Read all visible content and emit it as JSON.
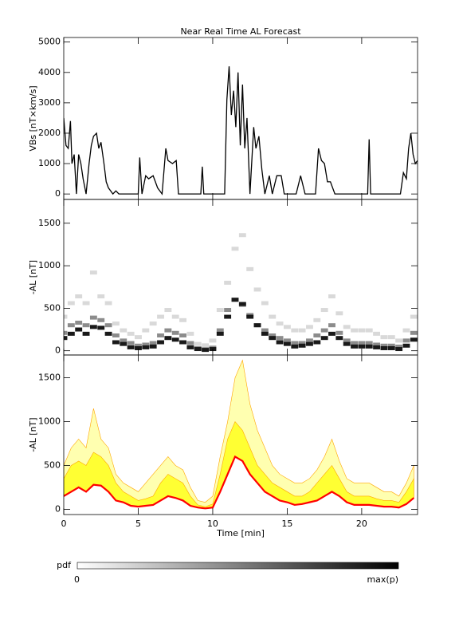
{
  "chart_data": [
    {
      "type": "line",
      "title": "Near Real Time AL Forecast",
      "ylabel": "VBs [nT×km/s]",
      "color": "#000000",
      "x": [
        0,
        0.15,
        0.3,
        0.45,
        0.55,
        0.7,
        0.85,
        1.0,
        1.15,
        1.3,
        1.5,
        1.7,
        1.85,
        2.0,
        2.2,
        2.35,
        2.5,
        2.7,
        2.85,
        3.0,
        3.3,
        3.5,
        3.7,
        4.0,
        5.0,
        5.1,
        5.25,
        5.5,
        5.7,
        6.0,
        6.3,
        6.6,
        6.85,
        7.0,
        7.3,
        7.55,
        7.7,
        9.2,
        9.3,
        9.4,
        10.8,
        10.95,
        11.1,
        11.25,
        11.4,
        11.55,
        11.7,
        11.85,
        12.0,
        12.15,
        12.3,
        12.5,
        12.75,
        12.9,
        13.1,
        13.3,
        13.5,
        13.8,
        14.0,
        14.3,
        14.6,
        14.8,
        15.6,
        15.9,
        16.2,
        16.9,
        17.1,
        17.3,
        17.5,
        17.7,
        17.9,
        18.2,
        20.4,
        20.5,
        20.6,
        22.6,
        22.8,
        23.0,
        23.15,
        23.3,
        23.45,
        23.6,
        23.75
      ],
      "values": [
        2500,
        1600,
        1500,
        2400,
        1000,
        1300,
        0,
        1300,
        1000,
        500,
        0,
        1000,
        1600,
        1900,
        2000,
        1500,
        1700,
        1000,
        400,
        200,
        0,
        100,
        0,
        0,
        0,
        1200,
        0,
        600,
        500,
        600,
        200,
        0,
        1500,
        1100,
        1000,
        1100,
        0,
        0,
        900,
        0,
        0,
        3100,
        4200,
        2600,
        3400,
        2200,
        4000,
        1600,
        3600,
        1500,
        2500,
        0,
        2200,
        1500,
        1900,
        800,
        0,
        600,
        0,
        600,
        600,
        0,
        0,
        600,
        0,
        0,
        1500,
        1100,
        1000,
        400,
        400,
        0,
        0,
        1800,
        0,
        0,
        700,
        500,
        1500,
        2000,
        1300,
        1000,
        1100
      ],
      "xlim": [
        0,
        23.75
      ],
      "xticks": [
        0,
        5,
        10,
        15,
        20
      ],
      "ylim": [
        -180,
        5150
      ],
      "yticks": [
        0,
        1000,
        2000,
        3000,
        4000,
        5000
      ]
    },
    {
      "type": "heatmap",
      "ylabel": "-AL [nT]",
      "x": [
        0,
        0.5,
        1,
        1.5,
        2,
        2.5,
        3,
        3.5,
        4,
        4.5,
        5,
        5.5,
        6,
        6.5,
        7,
        7.5,
        8,
        8.5,
        9,
        9.5,
        10,
        10.5,
        11,
        11.5,
        12,
        12.5,
        13,
        13.5,
        14,
        14.5,
        15,
        15.5,
        16,
        16.5,
        17,
        17.5,
        18,
        18.5,
        19,
        19.5,
        20,
        20.5,
        21,
        21.5,
        22,
        22.5,
        23,
        23.5
      ],
      "series": [
        {
          "pdf": 0.15,
          "values": [
            400,
            560,
            640,
            560,
            920,
            640,
            560,
            320,
            240,
            200,
            160,
            240,
            320,
            400,
            480,
            400,
            360,
            200,
            80,
            64,
            120,
            480,
            800,
            1200,
            1360,
            960,
            720,
            560,
            400,
            320,
            280,
            240,
            240,
            280,
            360,
            480,
            640,
            440,
            280,
            240,
            240,
            240,
            200,
            160,
            160,
            120,
            240,
            400
          ]
        },
        {
          "pdf": 0.45,
          "values": [
            210,
            300,
            330,
            300,
            390,
            360,
            300,
            180,
            120,
            90,
            60,
            72,
            90,
            180,
            240,
            210,
            180,
            90,
            30,
            18,
            36,
            240,
            480,
            600,
            540,
            420,
            300,
            240,
            180,
            150,
            120,
            90,
            90,
            120,
            180,
            240,
            300,
            210,
            120,
            90,
            90,
            90,
            72,
            60,
            60,
            48,
            120,
            210
          ]
        },
        {
          "pdf": 0.9,
          "values": [
            150,
            200,
            250,
            200,
            280,
            270,
            200,
            100,
            80,
            40,
            30,
            40,
            50,
            100,
            150,
            130,
            100,
            40,
            20,
            10,
            20,
            200,
            400,
            600,
            550,
            400,
            300,
            200,
            150,
            100,
            80,
            50,
            60,
            80,
            100,
            150,
            200,
            150,
            80,
            50,
            50,
            50,
            40,
            30,
            30,
            20,
            60,
            130
          ]
        }
      ],
      "xlim": [
        0,
        23.75
      ],
      "xticks": [
        0,
        5,
        10,
        15,
        20
      ],
      "ylim": [
        -50,
        1780
      ],
      "yticks": [
        0,
        500,
        1000,
        1500
      ]
    },
    {
      "type": "band",
      "ylabel": "-AL [nT]",
      "xlabel": "Time [min]",
      "edge_color": "#ffa500",
      "x": [
        0,
        0.5,
        1,
        1.5,
        2,
        2.5,
        3,
        3.5,
        4,
        4.5,
        5,
        5.5,
        6,
        6.5,
        7,
        7.5,
        8,
        8.5,
        9,
        9.5,
        10,
        10.5,
        11,
        11.5,
        12,
        12.5,
        13,
        13.5,
        14,
        14.5,
        15,
        15.5,
        16,
        16.5,
        17,
        17.5,
        18,
        18.5,
        19,
        19.5,
        20,
        20.5,
        21,
        21.5,
        22,
        22.5,
        23,
        23.5
      ],
      "series": [
        {
          "color": "#ffffb0",
          "values": [
            500,
            700,
            800,
            700,
            1150,
            800,
            700,
            400,
            300,
            250,
            200,
            300,
            400,
            500,
            600,
            500,
            450,
            250,
            100,
            80,
            150,
            600,
            1000,
            1500,
            1700,
            1200,
            900,
            700,
            500,
            400,
            350,
            300,
            300,
            350,
            450,
            600,
            800,
            550,
            350,
            300,
            300,
            300,
            250,
            200,
            200,
            150,
            300,
            500
          ]
        },
        {
          "color": "#ffff33",
          "values": [
            350,
            500,
            550,
            500,
            650,
            600,
            500,
            300,
            200,
            150,
            100,
            120,
            150,
            300,
            400,
            350,
            300,
            150,
            50,
            30,
            60,
            400,
            800,
            1000,
            900,
            700,
            500,
            400,
            300,
            250,
            200,
            150,
            150,
            200,
            300,
            400,
            500,
            350,
            200,
            150,
            150,
            150,
            120,
            100,
            100,
            80,
            200,
            350
          ]
        },
        {
          "color": "#ff0000",
          "values": [
            150,
            200,
            250,
            200,
            280,
            270,
            200,
            100,
            80,
            40,
            30,
            40,
            50,
            100,
            150,
            130,
            100,
            40,
            20,
            10,
            20,
            200,
            400,
            600,
            550,
            400,
            300,
            200,
            150,
            100,
            80,
            50,
            60,
            80,
            100,
            150,
            200,
            150,
            80,
            50,
            50,
            50,
            40,
            30,
            30,
            20,
            60,
            130
          ]
        }
      ],
      "xlim": [
        0,
        23.75
      ],
      "xticks": [
        0,
        5,
        10,
        15,
        20
      ],
      "ylim": [
        -60,
        1760
      ],
      "yticks": [
        0,
        500,
        1000,
        1500
      ]
    }
  ],
  "colorbar": {
    "label": "pdf",
    "min_label": "0",
    "max_label": "max(p)"
  }
}
